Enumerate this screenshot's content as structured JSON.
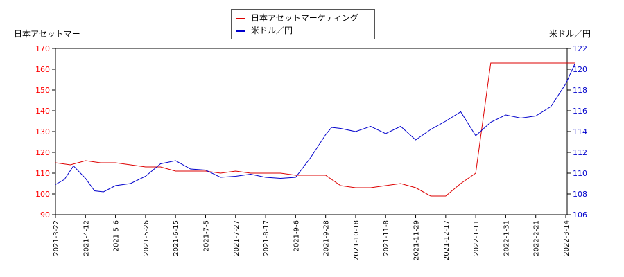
{
  "chart_data": {
    "type": "line",
    "left_axis_label": "日本アセットマー",
    "right_axis_label": "米ドル／円",
    "grid": false,
    "legend_placement": "top-center",
    "x_tick_labels": [
      "2021-3-22",
      "2021-4-12",
      "2021-5-6",
      "2021-5-26",
      "2021-6-15",
      "2021-7-5",
      "2021-7-27",
      "2021-8-17",
      "2021-9-6",
      "2021-9-28",
      "2021-10-18",
      "2021-11-8",
      "2021-11-29",
      "2021-12-17",
      "2022-1-11",
      "2022-1-31",
      "2022-2-21",
      "2022-3-14"
    ],
    "left_axis": {
      "ticks": [
        90,
        100,
        110,
        120,
        130,
        140,
        150,
        160,
        170
      ],
      "range": [
        90,
        170
      ],
      "color": "#ff0000"
    },
    "right_axis": {
      "ticks": [
        106,
        108,
        110,
        112,
        114,
        116,
        118,
        120,
        122
      ],
      "range": [
        106,
        122
      ],
      "color": "#0000cc"
    },
    "series": [
      {
        "name": "日本アセットマーケティング",
        "axis": "left",
        "color": "#dd0000",
        "x": [
          0,
          0.5,
          1,
          1.5,
          2,
          2.5,
          3,
          3.5,
          4,
          4.5,
          5,
          5.5,
          6,
          6.5,
          7,
          7.5,
          8,
          8.5,
          9,
          9.5,
          10,
          10.5,
          11,
          11.5,
          12,
          12.25,
          12.5,
          13,
          13.5,
          14,
          14.5,
          15,
          15.5,
          16,
          16.5,
          17,
          17.3
        ],
        "values": [
          115,
          114,
          116,
          115,
          115,
          114,
          113,
          113,
          111,
          111,
          111,
          110,
          111,
          110,
          110,
          110,
          109,
          109,
          109,
          104,
          103,
          103,
          104,
          105,
          103,
          101,
          99,
          99,
          105,
          110,
          163,
          163,
          163,
          163,
          163,
          163,
          163
        ]
      },
      {
        "name": "米ドル／円",
        "axis": "right",
        "color": "#0000cc",
        "x": [
          0,
          0.3,
          0.6,
          1,
          1.3,
          1.6,
          2,
          2.5,
          3,
          3.5,
          4,
          4.5,
          5,
          5.5,
          6,
          6.5,
          7,
          7.5,
          8,
          8.5,
          9,
          9.2,
          9.5,
          10,
          10.5,
          11,
          11.5,
          12,
          12.5,
          13,
          13.5,
          14,
          14.5,
          15,
          15.5,
          16,
          16.5,
          17,
          17.3
        ],
        "values": [
          108.9,
          109.4,
          110.7,
          109.5,
          108.3,
          108.2,
          108.8,
          109.0,
          109.7,
          110.9,
          111.2,
          110.4,
          110.3,
          109.6,
          109.7,
          109.9,
          109.6,
          109.5,
          109.6,
          111.5,
          113.7,
          114.4,
          114.3,
          114.0,
          114.5,
          113.8,
          114.5,
          113.2,
          114.2,
          115.0,
          115.9,
          113.6,
          114.9,
          115.6,
          115.3,
          115.5,
          116.4,
          118.6,
          120.5
        ]
      }
    ]
  }
}
